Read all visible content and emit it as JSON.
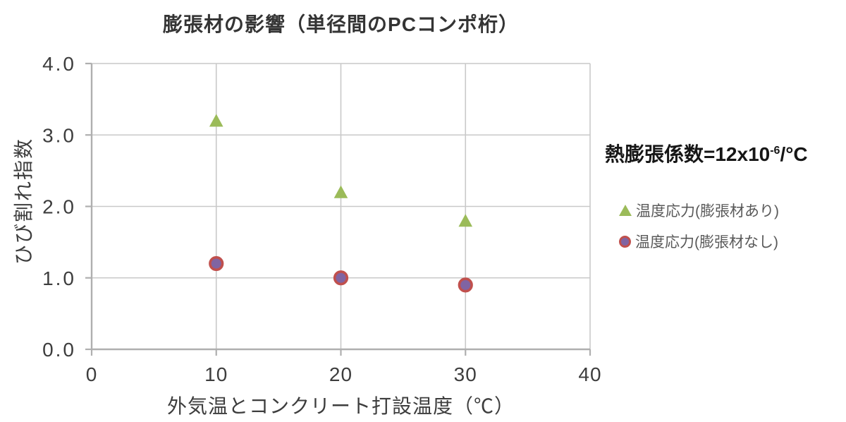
{
  "chart_data": {
    "type": "scatter",
    "title": "膨張材の影響（単径間のPCコンポ桁）",
    "xlabel": "外気温とコンクリート打設温度（℃）",
    "ylabel": "ひび割れ指数",
    "xlim": [
      0,
      40
    ],
    "ylim": [
      0,
      4
    ],
    "xticks": [
      0,
      10,
      20,
      30,
      40
    ],
    "yticks": [
      "0.0",
      "1.0",
      "2.0",
      "3.0",
      "4.0"
    ],
    "grid": true,
    "legend_position": "right",
    "series": [
      {
        "name": "温度応力(膨張材あり)",
        "marker": "triangle",
        "color": "#9BBB59",
        "x": [
          10,
          20,
          30
        ],
        "y": [
          3.2,
          2.2,
          1.8
        ]
      },
      {
        "name": "温度応力(膨張材なし)",
        "marker": "circle",
        "fill": "#8064A2",
        "stroke": "#C0504D",
        "x": [
          10,
          20,
          30
        ],
        "y": [
          1.2,
          1.0,
          0.9
        ]
      }
    ],
    "annotation": {
      "prefix": "熱膨張係数=12x10",
      "sup": "-6",
      "suffix": "/°C"
    },
    "style": {
      "grid_color": "#C9C9C9",
      "axis_color": "#AFAFAF",
      "tick_label_color": "#3d3d3d"
    }
  }
}
